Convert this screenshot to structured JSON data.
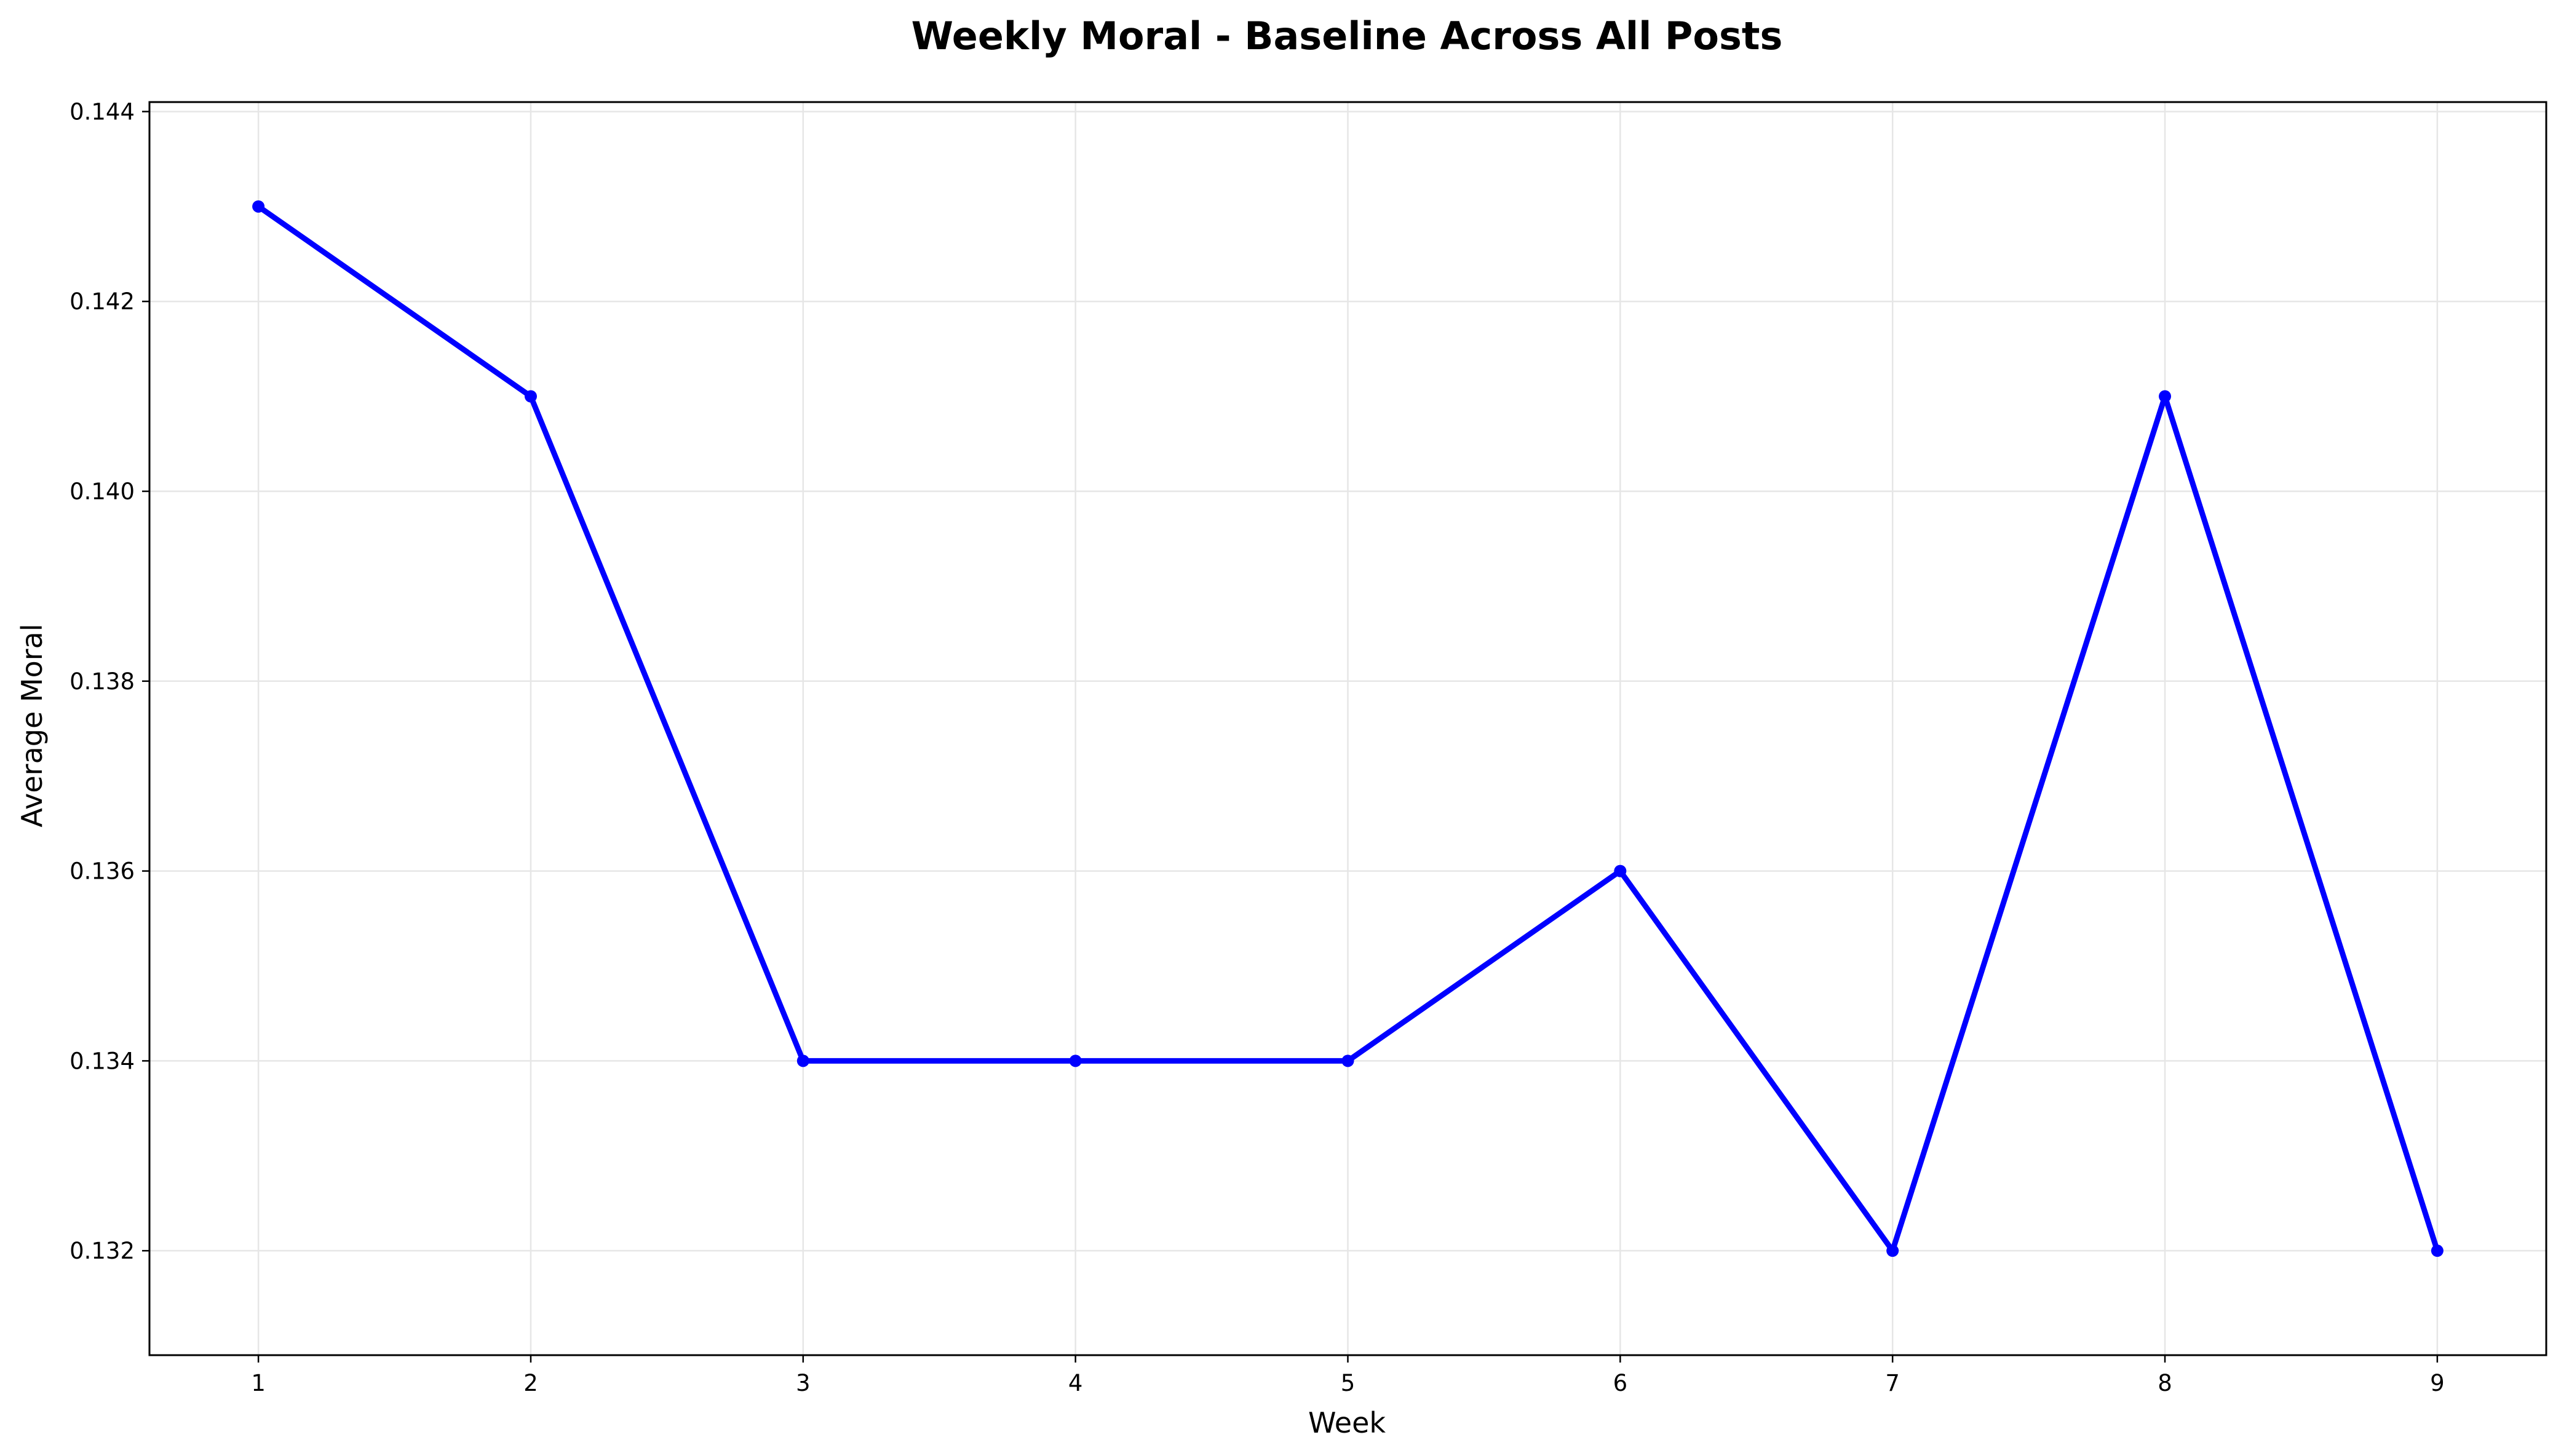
{
  "chart_data": {
    "type": "line",
    "title": "Weekly Moral - Baseline Across All Posts",
    "xlabel": "Week",
    "ylabel": "Average Moral",
    "x": [
      1,
      2,
      3,
      4,
      5,
      6,
      7,
      8,
      9
    ],
    "series": [
      {
        "values": [
          0.143,
          0.141,
          0.134,
          0.134,
          0.134,
          0.136,
          0.132,
          0.141,
          0.132
        ],
        "color": "#0000ff",
        "marker": "circle"
      }
    ],
    "xlim": [
      0.6,
      9.4
    ],
    "ylim": [
      0.1309,
      0.1441
    ],
    "xticks": [
      1,
      2,
      3,
      4,
      5,
      6,
      7,
      8,
      9
    ],
    "xtick_labels": [
      "1",
      "2",
      "3",
      "4",
      "5",
      "6",
      "7",
      "8",
      "9"
    ],
    "yticks": [
      0.132,
      0.134,
      0.136,
      0.138,
      0.14,
      0.142,
      0.144
    ],
    "ytick_labels": [
      "0.132",
      "0.134",
      "0.136",
      "0.138",
      "0.140",
      "0.142",
      "0.144"
    ],
    "grid": true,
    "legend": "none"
  }
}
